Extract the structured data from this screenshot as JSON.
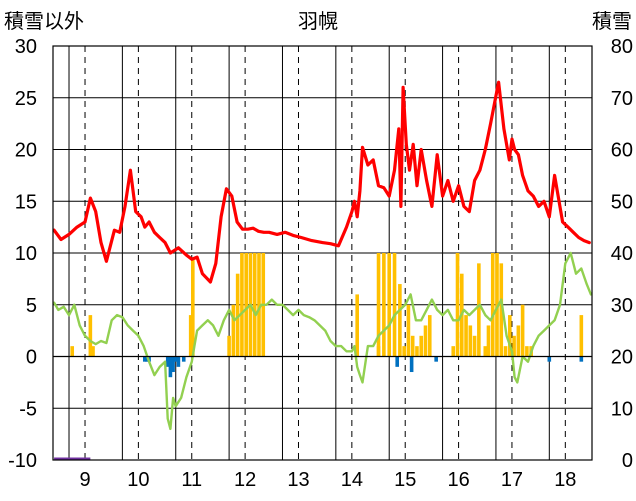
{
  "chart_data": {
    "type": "line",
    "title": "羽幌",
    "left_axis_label": "積雪以外",
    "right_axis_label": "積雪",
    "left_ylim": [
      -10,
      30
    ],
    "left_yticks": [
      "-10",
      "-5",
      "0",
      "5",
      "10",
      "15",
      "20",
      "25",
      "30"
    ],
    "right_ylim": [
      0,
      80
    ],
    "right_yticks": [
      "0",
      "10",
      "20",
      "30",
      "40",
      "50",
      "60",
      "70",
      "80"
    ],
    "xlim": [
      8.4,
      18.5
    ],
    "xticks": [
      "9",
      "10",
      "11",
      "12",
      "13",
      "14",
      "15",
      "16",
      "17",
      "18"
    ],
    "grid": "vertical-dashed",
    "colors": {
      "red": "#ff0000",
      "green": "#92d050",
      "orange": "#ffc000",
      "blue": "#0070c0",
      "purple": "#7030a0",
      "grid": "#000000"
    },
    "series": [
      {
        "color": "red",
        "x": [
          8.42,
          8.55,
          8.7,
          8.85,
          9.0,
          9.1,
          9.2,
          9.3,
          9.4,
          9.55,
          9.65,
          9.75,
          9.85,
          9.95,
          10.05,
          10.12,
          10.2,
          10.3,
          10.4,
          10.5,
          10.6,
          10.75,
          10.9,
          11.0,
          11.1,
          11.2,
          11.35,
          11.45,
          11.55,
          11.65,
          11.75,
          11.85,
          11.95,
          12.05,
          12.15,
          12.25,
          12.35,
          12.45,
          12.6,
          12.75,
          12.9,
          13.05,
          13.25,
          13.45,
          13.6,
          13.75,
          13.9,
          14.0,
          14.05,
          14.1,
          14.15,
          14.2,
          14.3,
          14.4,
          14.5,
          14.6,
          14.7,
          14.8,
          14.88,
          14.92,
          14.96,
          15.02,
          15.08,
          15.15,
          15.22,
          15.3,
          15.4,
          15.5,
          15.6,
          15.7,
          15.8,
          15.9,
          16.0,
          16.1,
          16.2,
          16.3,
          16.4,
          16.5,
          16.6,
          16.75,
          16.85,
          16.95,
          17.0,
          17.05,
          17.12,
          17.2,
          17.3,
          17.4,
          17.5,
          17.6,
          17.7,
          17.8,
          17.95,
          18.05,
          18.15,
          18.25,
          18.35,
          18.45
        ],
        "values": [
          12.2,
          11.3,
          11.8,
          12.5,
          13.0,
          15.3,
          14.0,
          11.0,
          9.2,
          12.2,
          12.0,
          14.5,
          18.0,
          14.0,
          13.5,
          12.5,
          13.0,
          12.0,
          11.5,
          11.0,
          10.0,
          10.5,
          9.8,
          9.4,
          9.6,
          8.0,
          7.2,
          9.0,
          13.5,
          16.2,
          15.5,
          13.0,
          12.3,
          12.3,
          12.4,
          12.1,
          12.0,
          12.0,
          11.8,
          12.0,
          11.7,
          11.5,
          11.2,
          11.0,
          10.9,
          10.7,
          12.5,
          14.0,
          15.0,
          13.5,
          16.0,
          20.2,
          18.5,
          19.0,
          16.5,
          16.3,
          15.5,
          18.0,
          22.0,
          14.5,
          26.0,
          20.5,
          18.0,
          20.5,
          16.5,
          20.0,
          17.0,
          14.5,
          19.5,
          15.5,
          17.0,
          15.0,
          16.5,
          14.5,
          14.0,
          17.0,
          18.0,
          20.0,
          22.5,
          26.5,
          22.0,
          19.0,
          21.0,
          20.0,
          19.5,
          17.5,
          16.0,
          15.5,
          14.5,
          15.0,
          13.5,
          17.5,
          13.0,
          12.5,
          12.0,
          11.5,
          11.2,
          11.0
        ]
      },
      {
        "color": "green",
        "x": [
          8.42,
          8.5,
          8.6,
          8.7,
          8.8,
          8.9,
          9.0,
          9.1,
          9.2,
          9.3,
          9.4,
          9.5,
          9.6,
          9.7,
          9.8,
          9.9,
          10.0,
          10.1,
          10.2,
          10.3,
          10.4,
          10.5,
          10.55,
          10.6,
          10.65,
          10.7,
          10.8,
          10.9,
          11.0,
          11.05,
          11.1,
          11.2,
          11.3,
          11.4,
          11.5,
          11.6,
          11.7,
          11.8,
          11.9,
          12.0,
          12.1,
          12.2,
          12.3,
          12.4,
          12.5,
          12.6,
          12.7,
          12.8,
          12.9,
          13.0,
          13.1,
          13.2,
          13.3,
          13.4,
          13.5,
          13.6,
          13.7,
          13.8,
          13.9,
          14.0,
          14.05,
          14.1,
          14.15,
          14.2,
          14.3,
          14.4,
          14.5,
          14.6,
          14.7,
          14.8,
          14.9,
          15.0,
          15.1,
          15.2,
          15.3,
          15.4,
          15.5,
          15.6,
          15.7,
          15.8,
          15.9,
          16.0,
          16.1,
          16.2,
          16.3,
          16.4,
          16.5,
          16.6,
          16.7,
          16.8,
          16.9,
          17.0,
          17.05,
          17.1,
          17.2,
          17.3,
          17.4,
          17.5,
          17.6,
          17.7,
          17.8,
          17.9,
          18.0,
          18.1,
          18.2,
          18.3,
          18.4,
          18.48
        ],
        "values": [
          5.2,
          4.5,
          4.8,
          4.0,
          5.0,
          3.0,
          2.0,
          1.5,
          1.2,
          1.5,
          1.3,
          3.5,
          4.0,
          3.8,
          3.0,
          2.5,
          2.0,
          1.0,
          -0.5,
          -1.8,
          -1.0,
          -0.5,
          -6.0,
          -7.0,
          -4.0,
          -4.8,
          -4.0,
          -2.0,
          -0.5,
          1.0,
          2.5,
          3.0,
          3.5,
          3.0,
          2.0,
          3.5,
          4.5,
          3.5,
          4.0,
          4.5,
          5.0,
          4.0,
          5.0,
          5.0,
          5.5,
          5.0,
          5.0,
          4.5,
          4.0,
          4.5,
          4.0,
          3.8,
          3.5,
          3.0,
          2.5,
          1.5,
          1.0,
          1.0,
          0.5,
          0.5,
          1.0,
          -1.0,
          -1.8,
          -2.5,
          1.0,
          1.0,
          2.0,
          2.5,
          3.0,
          4.0,
          4.5,
          5.0,
          6.0,
          3.5,
          3.5,
          4.5,
          5.5,
          4.5,
          4.0,
          4.5,
          3.5,
          3.5,
          4.5,
          4.0,
          4.5,
          5.0,
          4.0,
          3.5,
          4.5,
          5.5,
          2.0,
          0.5,
          -2.0,
          -2.5,
          0.0,
          -0.5,
          1.0,
          2.0,
          2.5,
          3.0,
          3.5,
          5.0,
          9.0,
          10.0,
          8.0,
          8.5,
          7.0,
          6.0
        ]
      }
    ],
    "bars_orange": {
      "color": "orange",
      "x": [
        8.76,
        9.1,
        9.15,
        10.98,
        11.02,
        11.7,
        11.78,
        11.86,
        11.94,
        12.02,
        12.1,
        12.18,
        12.26,
        12.34,
        14.1,
        14.5,
        14.5,
        14.6,
        14.7,
        14.8,
        14.9,
        14.98,
        15.06,
        15.14,
        15.22,
        15.3,
        15.38,
        15.46,
        15.9,
        15.98,
        16.06,
        16.14,
        16.22,
        16.3,
        16.38,
        16.5,
        16.56,
        16.64,
        16.72,
        16.8,
        16.88,
        16.96,
        17.04,
        17.12,
        17.2,
        17.28,
        17.36,
        18.3
      ],
      "values": [
        1,
        4,
        1,
        4,
        9.5,
        2,
        5,
        8,
        10,
        10,
        10,
        10,
        10,
        10,
        6,
        1,
        10,
        10,
        10,
        10,
        7,
        1,
        5,
        2,
        1,
        2,
        3,
        4,
        1,
        10,
        8,
        4,
        3,
        2,
        9,
        1,
        3,
        10,
        10,
        9,
        1,
        4,
        2,
        3,
        5,
        1,
        1,
        4
      ]
    },
    "bars_blue": {
      "color": "blue",
      "x": [
        10.12,
        10.16,
        10.2,
        10.55,
        10.6,
        10.65,
        10.7,
        10.75,
        10.85,
        14.85,
        15.12,
        15.58,
        17.7,
        18.3
      ],
      "values": [
        -0.5,
        -0.5,
        -0.5,
        -1.0,
        -2.0,
        -1.5,
        -0.5,
        -1.0,
        -0.5,
        -1.0,
        -1.5,
        -0.5,
        -0.5,
        -0.5
      ]
    },
    "segment_purple": {
      "color": "purple",
      "x": [
        8.42,
        9.1
      ],
      "value": -10
    }
  }
}
